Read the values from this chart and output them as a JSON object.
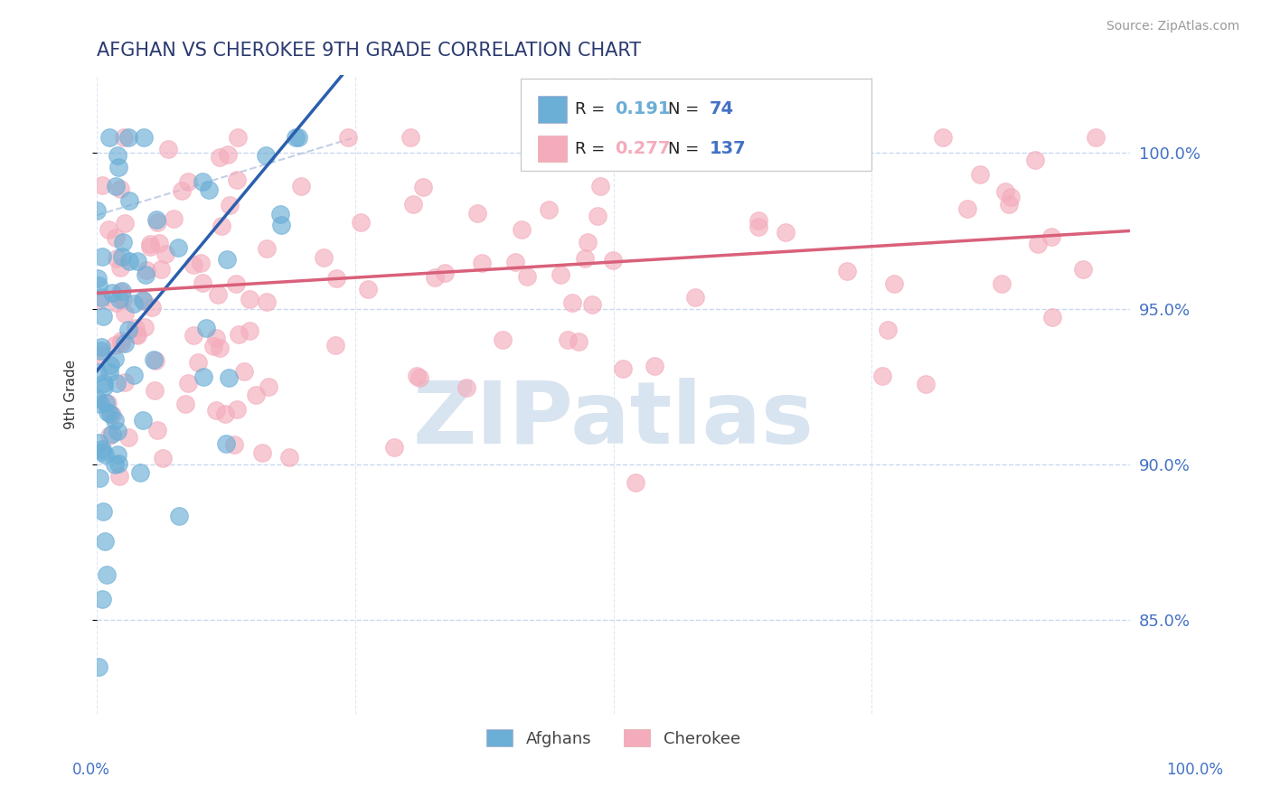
{
  "title": "AFGHAN VS CHEROKEE 9TH GRADE CORRELATION CHART",
  "source": "Source: ZipAtlas.com",
  "ylabel": "9th Grade",
  "yticks": [
    0.85,
    0.9,
    0.95,
    1.0
  ],
  "ytick_labels": [
    "85.0%",
    "90.0%",
    "95.0%",
    "100.0%"
  ],
  "xlim": [
    0.0,
    1.0
  ],
  "ylim": [
    0.82,
    1.025
  ],
  "legend_afghan": {
    "R": 0.191,
    "N": 74
  },
  "legend_cherokee": {
    "R": 0.277,
    "N": 137
  },
  "color_afghan": "#6BAED6",
  "color_cherokee": "#F4ACBC",
  "trendline_afghan_color": "#2B5FAE",
  "trendline_cherokee_color": "#D9607A",
  "background_color": "#FFFFFF",
  "grid_color": "#C8D8F0",
  "title_color": "#2B3A70",
  "axis_label_color": "#4472C4",
  "watermark_color": "#D8E4F0",
  "watermark": "ZIPatlas"
}
